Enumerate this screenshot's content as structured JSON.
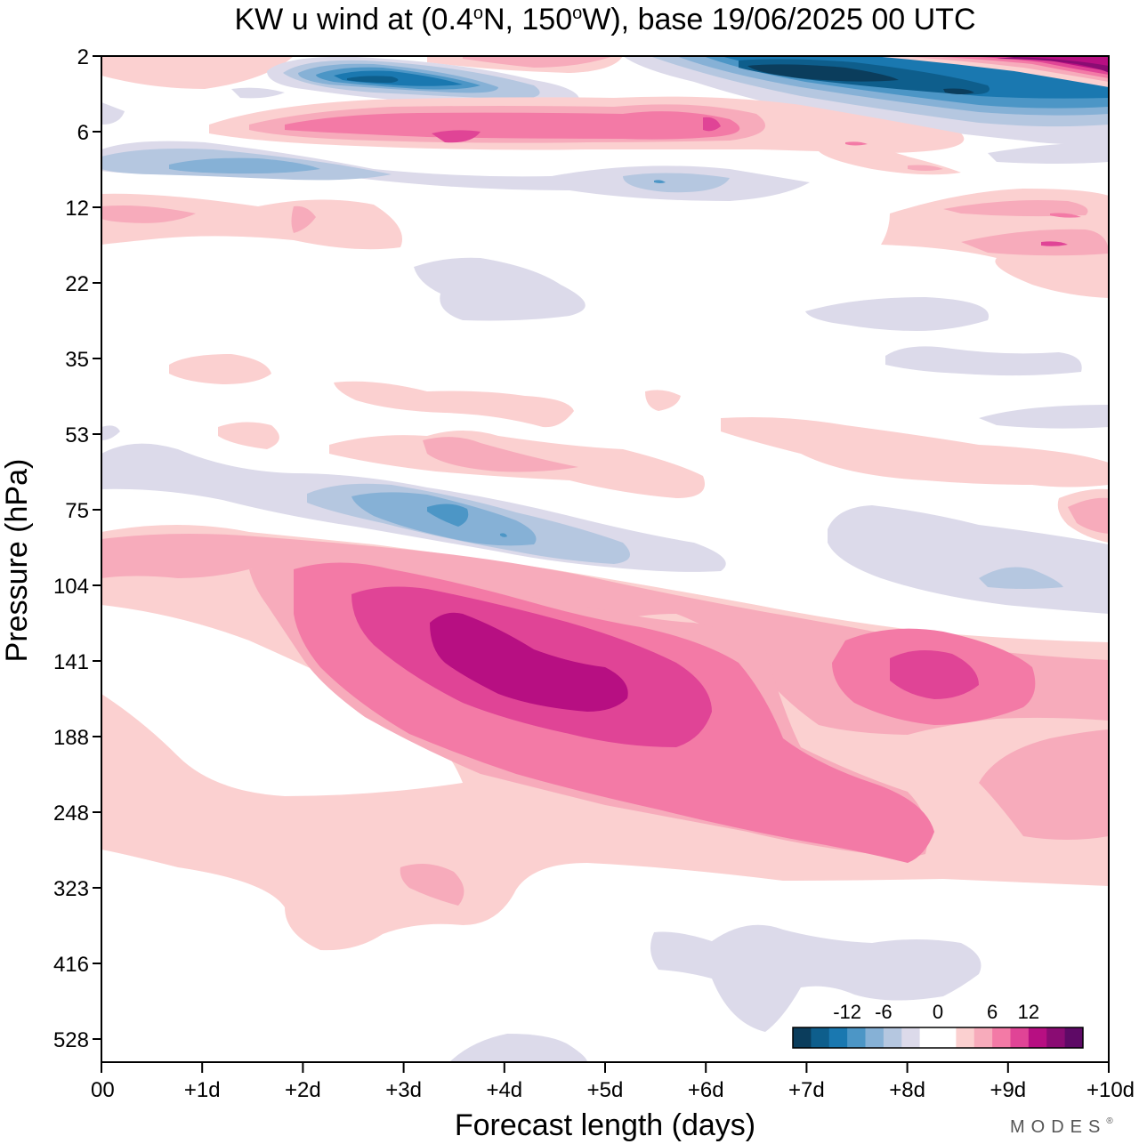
{
  "chart_data": {
    "type": "heatmap",
    "title_parts": [
      "KW u wind at (0.4",
      "o",
      "N, 150",
      "o",
      "W),  base 19/06/2025  00 UTC"
    ],
    "xlabel": "Forecast length (days)",
    "ylabel": "Pressure (hPa)",
    "x_ticks": [
      "00",
      "+1d",
      "+2d",
      "+3d",
      "+4d",
      "+5d",
      "+6d",
      "+7d",
      "+8d",
      "+9d",
      "+10d"
    ],
    "y_ticks": [
      "2",
      "6",
      "12",
      "22",
      "35",
      "53",
      "75",
      "104",
      "141",
      "188",
      "248",
      "323",
      "416",
      "528"
    ],
    "xlim": [
      0,
      10
    ],
    "y_axis": "pressure levels, top 2 hPa to bottom below 528 hPa",
    "colorbar": {
      "tick_labels": [
        "-12",
        "-6",
        "0",
        "6",
        "12"
      ],
      "levels": [
        -15,
        -12,
        -9,
        -6,
        -3,
        0,
        3,
        6,
        9,
        12,
        15
      ],
      "colors": [
        "#0b3d5c",
        "#0e5e8c",
        "#1a78b0",
        "#4c96c6",
        "#86b1d6",
        "#b5c7e0",
        "#dcdaea",
        "#ffffff",
        "#ffffff",
        "#fbd0d0",
        "#f7abbb",
        "#f37aa6",
        "#e04496",
        "#b70f82",
        "#8a0c73",
        "#5e0a66"
      ]
    },
    "regions": [
      {
        "desc": "negative band near 2-4 hPa",
        "level": -12,
        "x_range": [
          2.3,
          4.7
        ]
      },
      {
        "desc": "positive band near 4-6 hPa",
        "level": 6,
        "x_range": [
          1.8,
          7.2
        ]
      },
      {
        "desc": "negative band near 8 hPa",
        "level": -6,
        "x_range": [
          0,
          7
        ]
      },
      {
        "desc": "strong negative near 2-3 hPa",
        "level": -15,
        "x_range": [
          5.5,
          10
        ]
      },
      {
        "desc": "strong positive top right",
        "level": 15,
        "x_range": [
          8,
          10
        ]
      },
      {
        "desc": "negative band near 75 hPa",
        "level": -9,
        "x_range": [
          2,
          6.5
        ]
      },
      {
        "desc": "positive jet 104-300 hPa",
        "level": 12,
        "x_range": [
          0,
          10
        ]
      },
      {
        "desc": "weak negative near 416 hPa",
        "level": -3,
        "x_range": [
          5.5,
          8.8
        ]
      }
    ]
  },
  "branding": "MODES",
  "branding_mark": "®"
}
